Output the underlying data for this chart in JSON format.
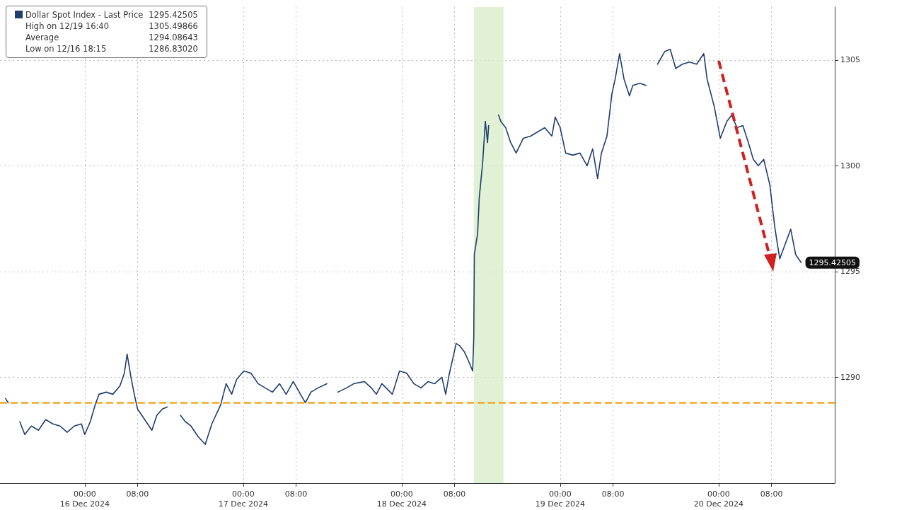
{
  "chart_data": {
    "type": "line",
    "series": [
      {
        "name": "Dollar Spot Index - Last Price",
        "color": "#1f3d6e",
        "x": [
          "2024-12-15T12:00",
          "2024-12-15T12:25",
          "2024-12-15T13:30",
          "2024-12-15T14:10",
          "2024-12-15T14:55",
          "2024-12-15T15:55",
          "2024-12-15T17:00",
          "2024-12-15T18:05",
          "2024-12-15T19:10",
          "2024-12-15T20:15",
          "2024-12-15T21:20",
          "2024-12-15T22:25",
          "2024-12-15T23:30",
          "2024-12-16T00:00",
          "2024-12-16T00:50",
          "2024-12-16T01:35",
          "2024-12-16T02:10",
          "2024-12-16T03:15",
          "2024-12-16T04:15",
          "2024-12-16T05:20",
          "2024-12-16T06:00",
          "2024-12-16T06:25",
          "2024-12-16T07:00",
          "2024-12-16T07:30",
          "2024-12-16T08:00",
          "2024-12-16T09:05",
          "2024-12-16T10:10",
          "2024-12-16T10:55",
          "2024-12-16T11:45",
          "2024-12-16T12:30",
          "2024-12-16T13:00",
          "2024-12-16T14:30",
          "2024-12-16T15:15",
          "2024-12-16T16:05",
          "2024-12-16T17:10",
          "2024-12-16T18:15",
          "2024-12-16T19:15",
          "2024-12-16T20:35",
          "2024-12-16T21:25",
          "2024-12-16T22:15",
          "2024-12-16T23:00",
          "2024-12-17T00:05",
          "2024-12-17T01:10",
          "2024-12-17T02:15",
          "2024-12-17T03:20",
          "2024-12-17T04:25",
          "2024-12-17T05:30",
          "2024-12-17T06:30",
          "2024-12-17T07:35",
          "2024-12-17T08:40",
          "2024-12-17T09:25",
          "2024-12-17T10:15",
          "2024-12-17T11:20",
          "2024-12-17T12:40",
          "2024-12-17T13:30",
          "2024-12-17T14:20",
          "2024-12-17T15:40",
          "2024-12-17T16:45",
          "2024-12-17T18:20",
          "2024-12-17T19:25",
          "2024-12-17T20:10",
          "2024-12-17T21:00",
          "2024-12-17T22:35",
          "2024-12-17T23:40",
          "2024-12-18T00:45",
          "2024-12-18T01:50",
          "2024-12-18T02:55",
          "2024-12-18T04:00",
          "2024-12-18T05:00",
          "2024-12-18T06:05",
          "2024-12-18T06:40",
          "2024-12-18T07:10",
          "2024-12-18T08:15",
          "2024-12-18T08:45",
          "2024-12-18T09:30",
          "2024-12-18T10:05",
          "2024-12-18T10:45",
          "2024-12-18T10:55",
          "2024-12-18T11:00",
          "2024-12-18T11:30",
          "2024-12-18T11:45",
          "2024-12-18T12:15",
          "2024-12-18T12:40",
          "2024-12-18T13:00",
          "2024-12-18T13:10",
          "2024-12-18T13:40",
          "2024-12-18T14:40",
          "2024-12-18T15:00",
          "2024-12-18T15:45",
          "2024-12-18T16:30",
          "2024-12-18T17:20",
          "2024-12-18T18:25",
          "2024-12-18T19:30",
          "2024-12-18T20:35",
          "2024-12-18T21:40",
          "2024-12-18T22:45",
          "2024-12-18T23:15",
          "2024-12-19T00:00",
          "2024-12-19T00:50",
          "2024-12-19T01:55",
          "2024-12-19T03:00",
          "2024-12-19T04:05",
          "2024-12-19T04:55",
          "2024-12-19T05:40",
          "2024-12-19T06:15",
          "2024-12-19T07:05",
          "2024-12-19T07:50",
          "2024-12-19T08:20",
          "2024-12-19T09:00",
          "2024-12-19T09:40",
          "2024-12-19T10:30",
          "2024-12-19T11:00",
          "2024-12-19T12:05",
          "2024-12-19T13:00",
          "2024-12-19T13:45",
          "2024-12-19T14:45",
          "2024-12-19T15:50",
          "2024-12-19T16:40",
          "2024-12-19T17:30",
          "2024-12-19T18:30",
          "2024-12-19T19:35",
          "2024-12-19T20:40",
          "2024-12-19T21:45",
          "2024-12-19T22:15",
          "2024-12-19T23:20",
          "2024-12-20T00:15",
          "2024-12-20T01:15",
          "2024-12-20T02:00",
          "2024-12-20T02:45",
          "2024-12-20T03:40",
          "2024-12-20T04:30",
          "2024-12-20T05:15",
          "2024-12-20T06:00",
          "2024-12-20T06:50",
          "2024-12-20T07:45",
          "2024-12-20T08:30",
          "2024-12-20T09:15",
          "2024-12-20T10:05",
          "2024-12-20T10:55",
          "2024-12-20T11:40",
          "2024-12-20T12:30"
        ],
        "values": [
          1289.0,
          1288.8,
          null,
          1287.9,
          1287.3,
          1287.7,
          1287.5,
          1288.0,
          1287.8,
          1287.7,
          1287.4,
          1287.7,
          1287.8,
          1287.3,
          1287.9,
          1288.7,
          1289.2,
          1289.3,
          1289.2,
          1289.6,
          1290.2,
          1291.1,
          1290.0,
          1289.2,
          1288.5,
          1288.0,
          1287.5,
          1288.2,
          1288.5,
          1288.6,
          null,
          1288.2,
          1287.9,
          1287.7,
          1287.2,
          1286.83,
          1287.8,
          1288.7,
          1289.7,
          1289.2,
          1289.9,
          1290.3,
          1290.2,
          1289.7,
          1289.5,
          1289.3,
          1289.7,
          1289.2,
          1289.8,
          1289.2,
          1288.8,
          1289.3,
          1289.5,
          1289.7,
          null,
          1289.3,
          1289.5,
          1289.7,
          1289.8,
          1289.5,
          1289.2,
          1289.7,
          1289.2,
          1290.3,
          1290.2,
          1289.7,
          1289.5,
          1289.8,
          1289.7,
          1290.0,
          1289.2,
          1290.1,
          1291.6,
          1291.5,
          1291.2,
          1290.8,
          1290.3,
          1291.9,
          1295.8,
          1296.8,
          1298.5,
          1300.1,
          1302.1,
          1301.1,
          1301.9,
          null,
          1302.4,
          1302.1,
          1301.8,
          1301.1,
          1300.6,
          1301.3,
          1301.4,
          1301.6,
          1301.8,
          1301.4,
          1302.3,
          1301.8,
          1300.6,
          1300.5,
          1300.6,
          1300.0,
          1300.8,
          1299.4,
          1300.6,
          1301.4,
          1303.4,
          1304.1,
          1305.3,
          1304.1,
          1303.3,
          1303.8,
          1303.9,
          1303.8,
          null,
          1304.8,
          1305.4,
          1305.5,
          1304.6,
          1304.8,
          1304.9,
          1304.8,
          1305.3,
          1304.1,
          1302.8,
          1301.3,
          1302.1,
          1302.4,
          1301.8,
          1301.9,
          1301.1,
          1300.3,
          1300.0,
          1300.3,
          1299.1,
          1297.1,
          1295.6,
          1296.3,
          1297.0,
          1295.8,
          1295.42505
        ],
        "value_labels": [
          null,
          null,
          null,
          null,
          null,
          null,
          null,
          null,
          null,
          null,
          null,
          null,
          null,
          null,
          null,
          null,
          null,
          null,
          null,
          null,
          null,
          null,
          null,
          null,
          null,
          null,
          null,
          null,
          null,
          null,
          null,
          null,
          null,
          null,
          null,
          null,
          null,
          null,
          null,
          null,
          null,
          null,
          null,
          null,
          null,
          null,
          null,
          null,
          null,
          null,
          null,
          null,
          null,
          null,
          null,
          null,
          null,
          null,
          null,
          null,
          null,
          null,
          null,
          null,
          null,
          null,
          null,
          null,
          null,
          null,
          null,
          null,
          null,
          null,
          null,
          null,
          null,
          null,
          null,
          null,
          null,
          null,
          null,
          null,
          null,
          null,
          null,
          null,
          null,
          null,
          null,
          null,
          null,
          null,
          null,
          null,
          null,
          null,
          null,
          null,
          null,
          null,
          null,
          null,
          null,
          null,
          null,
          null,
          null,
          null,
          null,
          null,
          null,
          null,
          null,
          null,
          null,
          null,
          null,
          null,
          null,
          null,
          null,
          null,
          null,
          null,
          null,
          null,
          null,
          null,
          null,
          null,
          null,
          null,
          null,
          null,
          null,
          null,
          null,
          null,
          "1295.42505"
        ]
      }
    ],
    "xlim": [
      "2024-12-15T11:10",
      "2024-12-20T17:35"
    ],
    "xticks": [
      {
        "value": "2024-12-16T00:00",
        "label": "00:00\n16 Dec 2024"
      },
      {
        "value": "2024-12-16T08:00",
        "label": "08:00"
      },
      {
        "value": "2024-12-17T00:00",
        "label": "00:00\n17 Dec 2024"
      },
      {
        "value": "2024-12-17T08:00",
        "label": "08:00"
      },
      {
        "value": "2024-12-18T00:00",
        "label": "00:00\n18 Dec 2024"
      },
      {
        "value": "2024-12-18T08:00",
        "label": "08:00"
      },
      {
        "value": "2024-12-19T00:00",
        "label": "00:00\n19 Dec 2024"
      },
      {
        "value": "2024-12-19T08:00",
        "label": "08:00"
      },
      {
        "value": "2024-12-20T00:00",
        "label": "00:00\n20 Dec 2024"
      },
      {
        "value": "2024-12-20T08:00",
        "label": "08:00"
      }
    ],
    "ylim": [
      1285,
      1307.5
    ],
    "yticks": [
      1290,
      1295,
      1300,
      1305
    ],
    "ref_lines": [
      {
        "axis": "y",
        "value": 1288.8,
        "color": "#f5a623",
        "line_style": "dashed"
      }
    ],
    "bands": [
      {
        "axis": "x",
        "from": "2024-12-18T10:55",
        "to": "2024-12-18T15:25",
        "color": "#d8edcb"
      }
    ],
    "annotations": [
      "High on 12/19 16:40",
      "1305.49866",
      "Average",
      "1294.08643",
      "Low on 12/16 18:15",
      "1286.83020"
    ],
    "grid": true,
    "legend": "top left",
    "marker": "none",
    "line_style": "solid"
  }
}
